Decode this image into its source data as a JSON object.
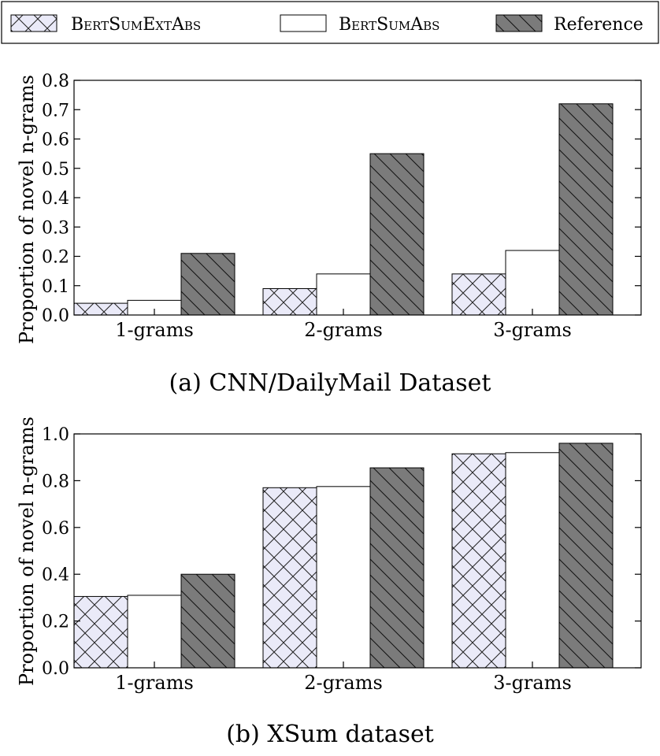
{
  "legend": [
    {
      "label": "BertSumExtAbs",
      "pattern": "crosshatch",
      "fill": "#eaeaf8"
    },
    {
      "label": "BertSumAbs",
      "pattern": "none",
      "fill": "#ffffff"
    },
    {
      "label": "Reference",
      "pattern": "diagonal",
      "fill": "#7b7b7b"
    }
  ],
  "chart_data": [
    {
      "type": "bar",
      "caption": "(a) CNN/DailyMail Dataset",
      "ylabel": "Proportion of novel n-grams",
      "ylim": [
        0,
        0.8
      ],
      "yticks": [
        "0.0",
        "0.1",
        "0.2",
        "0.3",
        "0.4",
        "0.5",
        "0.6",
        "0.7",
        "0.8"
      ],
      "categories": [
        "1-grams",
        "2-grams",
        "3-grams"
      ],
      "series": [
        {
          "name": "BertSumExtAbs",
          "values": [
            0.04,
            0.09,
            0.14
          ]
        },
        {
          "name": "BertSumAbs",
          "values": [
            0.05,
            0.14,
            0.22
          ]
        },
        {
          "name": "Reference",
          "values": [
            0.21,
            0.55,
            0.72
          ]
        }
      ]
    },
    {
      "type": "bar",
      "caption": "(b) XSum dataset",
      "ylabel": "Proportion of novel n-grams",
      "ylim": [
        0,
        1.0
      ],
      "yticks": [
        "0.0",
        "0.2",
        "0.4",
        "0.6",
        "0.8",
        "1.0"
      ],
      "categories": [
        "1-grams",
        "2-grams",
        "3-grams"
      ],
      "series": [
        {
          "name": "BertSumExtAbs",
          "values": [
            0.305,
            0.77,
            0.915
          ]
        },
        {
          "name": "BertSumAbs",
          "values": [
            0.31,
            0.775,
            0.92
          ]
        },
        {
          "name": "Reference",
          "values": [
            0.4,
            0.855,
            0.96
          ]
        }
      ]
    }
  ]
}
